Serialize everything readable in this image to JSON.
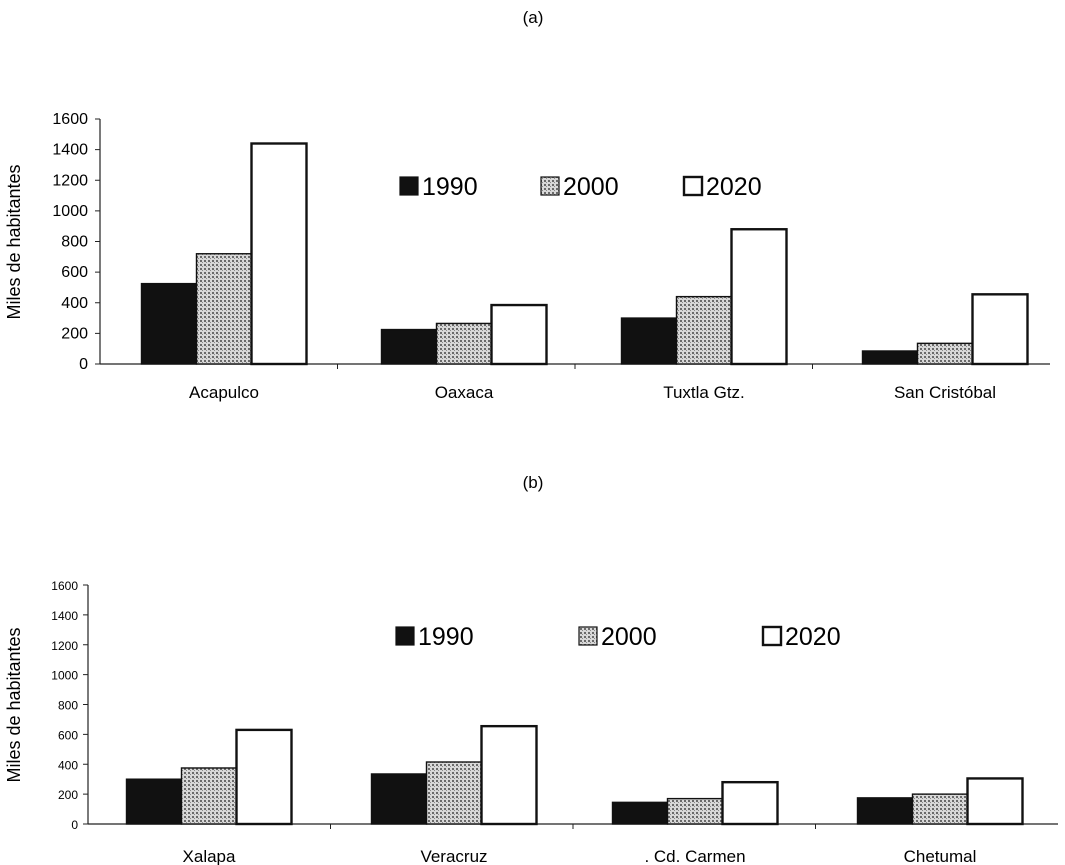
{
  "chart_data": [
    {
      "type": "bar",
      "panel_label": "(a)",
      "categories": [
        "Acapulco",
        "Oaxaca",
        "Tuxtla Gtz.",
        "San Cristóbal"
      ],
      "series": [
        {
          "name": "1990",
          "values": [
            525,
            225,
            300,
            85
          ]
        },
        {
          "name": "2000",
          "values": [
            720,
            265,
            440,
            135
          ]
        },
        {
          "name": "2020",
          "values": [
            1440,
            385,
            880,
            455
          ]
        }
      ],
      "ylabel": "Miles de habitantes",
      "ylim": [
        0,
        1600
      ],
      "yticks": [
        "0",
        "200",
        "400",
        "600",
        "800",
        "1000",
        "1200",
        "1400",
        "1600"
      ],
      "legend": "top-center"
    },
    {
      "type": "bar",
      "panel_label": "(b)",
      "categories": [
        "Xalapa",
        "Veracruz",
        ". Cd. Carmen",
        "Chetumal"
      ],
      "series": [
        {
          "name": "1990",
          "values": [
            300,
            335,
            145,
            175
          ]
        },
        {
          "name": "2000",
          "values": [
            375,
            415,
            170,
            200
          ]
        },
        {
          "name": "2020",
          "values": [
            630,
            655,
            280,
            305
          ]
        }
      ],
      "ylabel": "Miles de habitantes",
      "ylim": [
        0,
        1600
      ],
      "yticks": [
        "0",
        "200",
        "400",
        "600",
        "800",
        "1000",
        "1200",
        "1400",
        "1600"
      ],
      "legend": "top-center"
    }
  ],
  "series_styles": [
    "solid-black",
    "dotted-gray",
    "white"
  ]
}
